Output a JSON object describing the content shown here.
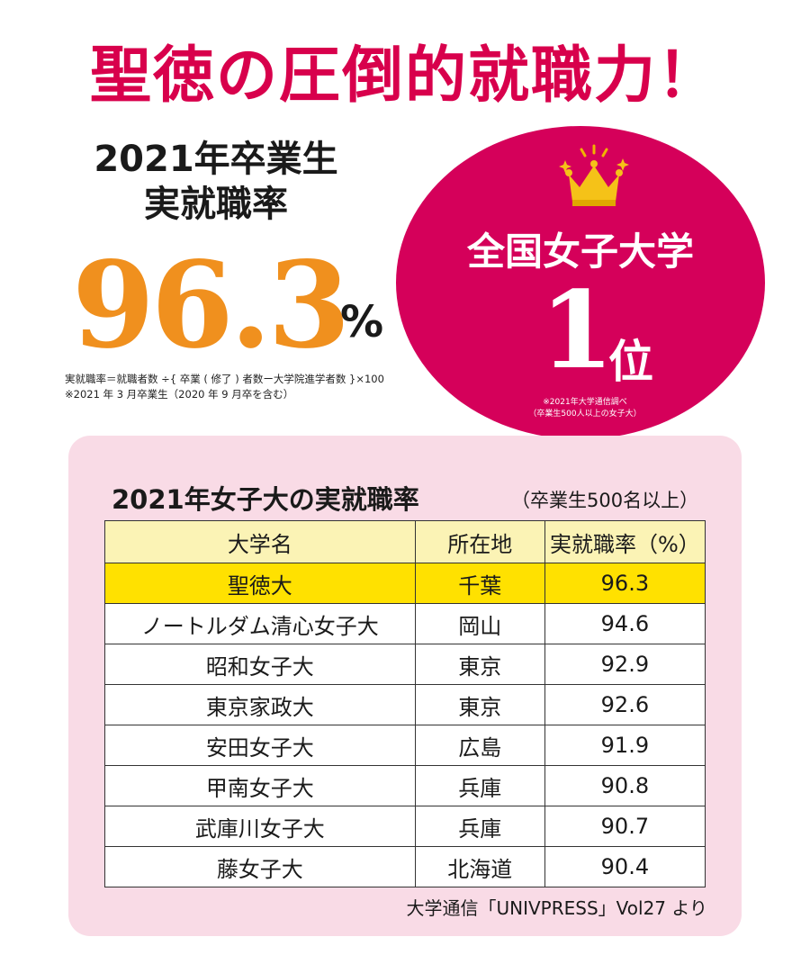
{
  "headline": "聖徳の圧倒的就職力！",
  "summary": {
    "line1": "2021年卒業生",
    "line2": "実就職率",
    "rate": "96.3",
    "unit": "%",
    "formula": "実就職率＝就職者数 ÷{ 卒業 ( 修了 ) 者数ー大学院進学者数 }×100",
    "note": "※2021 年 3 月卒業生（2020 年 9 月卒を含む）"
  },
  "badge": {
    "label": "全国女子大学",
    "rank": "1",
    "rank_suffix": "位",
    "note1": "※2021年大学通信調べ",
    "note2": "（卒業生500人以上の女子大）",
    "crown_icon": "crown-icon",
    "color": "#d5005a"
  },
  "table": {
    "title": "2021年女子大の実就職率",
    "title_note": "（卒業生500名以上）",
    "headers": [
      "大学名",
      "所在地",
      "実就職率（%）"
    ],
    "rows": [
      [
        "聖徳大",
        "千葉",
        "96.3"
      ],
      [
        "ノートルダム清心女子大",
        "岡山",
        "94.6"
      ],
      [
        "昭和女子大",
        "東京",
        "92.9"
      ],
      [
        "東京家政大",
        "東京",
        "92.6"
      ],
      [
        "安田女子大",
        "広島",
        "91.9"
      ],
      [
        "甲南女子大",
        "兵庫",
        "90.8"
      ],
      [
        "武庫川女子大",
        "兵庫",
        "90.7"
      ],
      [
        "藤女子大",
        "北海道",
        "90.4"
      ]
    ],
    "highlight_color": "#ffe100",
    "header_color": "#fbf3b5"
  },
  "source": "大学通信「UNIVPRESS」Vol27 より",
  "colors": {
    "accent": "#d8004c",
    "rate": "#f0901e",
    "panel": "#f9dbe6"
  }
}
